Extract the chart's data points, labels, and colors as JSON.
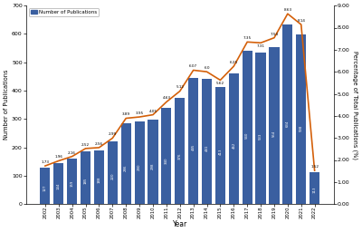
{
  "years": [
    2002,
    2003,
    2004,
    2005,
    2006,
    2007,
    2008,
    2009,
    2010,
    2011,
    2012,
    2013,
    2014,
    2015,
    2016,
    2017,
    2018,
    2019,
    2020,
    2021,
    2022
  ],
  "publications": [
    127,
    144,
    159,
    185,
    188,
    220,
    286,
    290,
    298,
    340,
    376,
    445,
    441,
    413,
    462,
    540,
    533,
    554,
    634,
    598,
    113
  ],
  "percentages": [
    1.73,
    1.96,
    2.16,
    2.52,
    2.56,
    2.99,
    3.89,
    3.95,
    4.05,
    4.63,
    5.12,
    6.07,
    6.0,
    5.62,
    6.25,
    7.35,
    7.31,
    7.54,
    8.63,
    8.14,
    1.52
  ],
  "bar_color": "#3a5fa0",
  "line_color": "#d4600a",
  "ylabel_left": "Number of Publications",
  "ylabel_right": "Percentage of Total Publications (%)",
  "xlabel": "Year",
  "ylim_left": [
    0,
    700
  ],
  "ylim_right": [
    0.0,
    9.0
  ],
  "yticks_left": [
    0,
    100,
    200,
    300,
    400,
    500,
    600,
    700
  ],
  "yticks_right": [
    0.0,
    1.0,
    2.0,
    3.0,
    4.0,
    5.0,
    6.0,
    7.0,
    8.0,
    9.0
  ],
  "legend_label": "Number of Publications",
  "background_color": "#ffffff"
}
